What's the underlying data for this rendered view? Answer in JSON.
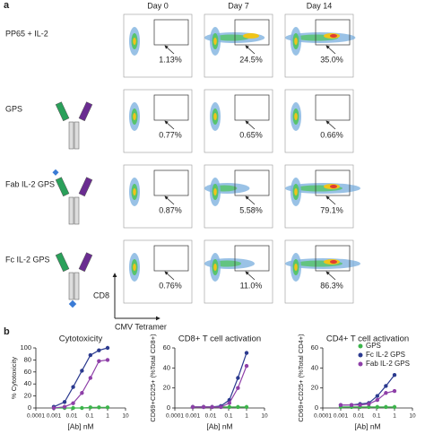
{
  "panel_a": {
    "label": "a",
    "columns": [
      "Day 0",
      "Day 7",
      "Day 14"
    ],
    "rows": [
      {
        "label": "PP65 + IL-2",
        "percents": [
          "1.13%",
          "24.5%",
          "35.0%"
        ]
      },
      {
        "label": "GPS",
        "percents": [
          "0.77%",
          "0.65%",
          "0.66%"
        ]
      },
      {
        "label": "Fab IL-2 GPS",
        "percents": [
          "0.87%",
          "5.58%",
          "79.1%"
        ]
      },
      {
        "label": "Fc IL-2 GPS",
        "percents": [
          "0.76%",
          "11.0%",
          "86.3%"
        ]
      }
    ],
    "y_axis": "CD8",
    "x_axis": "CMV Tetramer"
  },
  "panel_b": {
    "label": "b"
  },
  "chart_data": [
    {
      "type": "line",
      "title": "Cytotoxicity",
      "x_label": "[Ab] nM",
      "y_label": "% Cytotoxicity",
      "xscale": "log",
      "x": [
        0.001,
        0.004,
        0.012,
        0.037,
        0.11,
        0.33,
        1
      ],
      "xlim": [
        0.0001,
        10
      ],
      "xticks": [
        0.0001,
        0.001,
        0.01,
        0.1,
        1,
        10
      ],
      "ylim": [
        0,
        100
      ],
      "yticks": [
        0,
        20,
        40,
        60,
        80,
        100
      ],
      "series": [
        {
          "color": "#3cb44b",
          "values": [
            0,
            0,
            0,
            0,
            1,
            1,
            1
          ]
        },
        {
          "color": "#2b3a8f",
          "values": [
            2,
            10,
            35,
            62,
            88,
            96,
            100
          ]
        },
        {
          "color": "#8e3fa8",
          "values": [
            0,
            2,
            8,
            25,
            50,
            78,
            80
          ]
        }
      ]
    },
    {
      "type": "line",
      "title": "CD8+ T cell activation",
      "x_label": "[Ab] nM",
      "y_label": "CD69+CD25+ (%Total CD8+)",
      "xscale": "log",
      "x": [
        0.001,
        0.004,
        0.012,
        0.037,
        0.11,
        0.33,
        1
      ],
      "xlim": [
        0.0001,
        10
      ],
      "xticks": [
        0.0001,
        0.001,
        0.01,
        0.1,
        1,
        10
      ],
      "ylim": [
        0,
        60
      ],
      "yticks": [
        0,
        20,
        40,
        60
      ],
      "series": [
        {
          "color": "#3cb44b",
          "values": [
            1,
            1,
            1,
            1,
            1,
            1,
            1
          ]
        },
        {
          "color": "#2b3a8f",
          "values": [
            1,
            1,
            1,
            2,
            8,
            30,
            55
          ]
        },
        {
          "color": "#8e3fa8",
          "values": [
            1,
            1,
            1,
            1,
            5,
            20,
            42
          ]
        }
      ]
    },
    {
      "type": "line",
      "title": "CD4+ T cell activation",
      "x_label": "[Ab] nM",
      "y_label": "CD69+CD25+ (%Total CD4+)",
      "xscale": "log",
      "x": [
        0.001,
        0.004,
        0.012,
        0.037,
        0.11,
        0.33,
        1
      ],
      "xlim": [
        0.0001,
        10
      ],
      "xticks": [
        0.0001,
        0.001,
        0.01,
        0.1,
        1,
        10
      ],
      "ylim": [
        0,
        60
      ],
      "yticks": [
        0,
        20,
        40,
        60
      ],
      "legend": "upper right",
      "series": [
        {
          "name": "GPS",
          "color": "#3cb44b",
          "values": [
            1,
            1,
            1,
            1,
            1,
            1,
            1
          ]
        },
        {
          "name": "Fc IL-2 GPS",
          "color": "#2b3a8f",
          "values": [
            3,
            3,
            4,
            5,
            12,
            22,
            33
          ]
        },
        {
          "name": "Fab IL-2 GPS",
          "color": "#8e3fa8",
          "values": [
            3,
            3,
            3,
            4,
            8,
            15,
            17
          ]
        }
      ]
    }
  ]
}
